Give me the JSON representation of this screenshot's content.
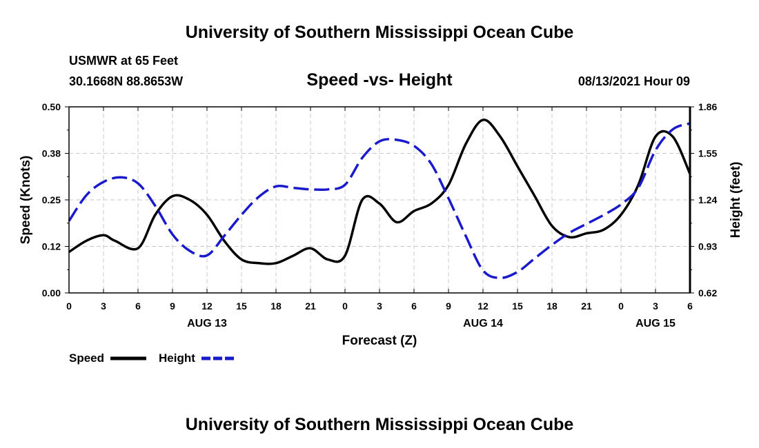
{
  "header": {
    "title": "University of Southern Mississippi Ocean Cube",
    "station": "USMWR at 65 Feet",
    "coords": "30.1668N  88.8653W",
    "chart_title": "Speed -vs- Height",
    "datetime": "08/13/2021 Hour 09"
  },
  "footer": {
    "title": "University of Southern Mississippi Ocean Cube"
  },
  "legend": {
    "speed_label": "Speed",
    "height_label": "Height"
  },
  "colors": {
    "speed": "#000000",
    "height": "#1a1acd",
    "grid": "#c8c8c8"
  },
  "chart_data": {
    "type": "line",
    "title": "Speed -vs- Height",
    "xlabel": "Forecast (Z)",
    "ylabel": "Speed (Knots)",
    "y2label": "Height (feet)",
    "x_hours_range": [
      0,
      54
    ],
    "x_tick_labels": [
      "0",
      "3",
      "6",
      "9",
      "12",
      "15",
      "18",
      "21",
      "0",
      "3",
      "6",
      "9",
      "12",
      "15",
      "18",
      "21",
      "0",
      "3",
      "6"
    ],
    "date_labels": [
      {
        "label": "AUG 13",
        "hour": 12
      },
      {
        "label": "AUG 14",
        "hour": 36
      },
      {
        "label": "AUG 15",
        "hour": 51
      }
    ],
    "y_left": {
      "min": 0.0,
      "max": 0.5,
      "ticks": [
        "0.00",
        "0.12",
        "0.25",
        "0.38",
        "0.50"
      ]
    },
    "y_right": {
      "min": 0.62,
      "max": 1.86,
      "ticks": [
        "0.62",
        "0.93",
        "1.24",
        "1.55",
        "1.86"
      ]
    },
    "grid": true,
    "series": [
      {
        "name": "Speed",
        "axis": "left",
        "style": "solid",
        "x": [
          0,
          1.5,
          3,
          4,
          6,
          7.5,
          9,
          10.5,
          12,
          13.5,
          15,
          16.5,
          18,
          19.5,
          21,
          22.5,
          24,
          25.5,
          27,
          28.5,
          30,
          31.5,
          33,
          34.5,
          36,
          37.5,
          39,
          40.5,
          42,
          43.5,
          45,
          46.5,
          48,
          49.5,
          51,
          52.5,
          54
        ],
        "values": [
          0.11,
          0.14,
          0.155,
          0.14,
          0.12,
          0.21,
          0.26,
          0.25,
          0.21,
          0.14,
          0.09,
          0.08,
          0.08,
          0.1,
          0.12,
          0.09,
          0.1,
          0.25,
          0.24,
          0.19,
          0.22,
          0.24,
          0.29,
          0.4,
          0.465,
          0.42,
          0.34,
          0.26,
          0.18,
          0.15,
          0.16,
          0.17,
          0.21,
          0.29,
          0.42,
          0.42,
          0.32
        ]
      },
      {
        "name": "Height",
        "axis": "right",
        "style": "dashed",
        "x": [
          0,
          1.5,
          3,
          4.5,
          6,
          7.5,
          9,
          10.5,
          12,
          13.5,
          15,
          16.5,
          18,
          19.5,
          21,
          22.5,
          24,
          25.5,
          27,
          28.5,
          30,
          31.5,
          33,
          34.5,
          36,
          37.5,
          39,
          40.5,
          42,
          43.5,
          45,
          46.5,
          48,
          49.5,
          51,
          52.5,
          54
        ],
        "values": [
          1.1,
          1.27,
          1.36,
          1.39,
          1.35,
          1.2,
          1.01,
          0.9,
          0.87,
          1.0,
          1.14,
          1.26,
          1.33,
          1.32,
          1.31,
          1.31,
          1.34,
          1.52,
          1.63,
          1.64,
          1.6,
          1.48,
          1.25,
          1.0,
          0.77,
          0.72,
          0.76,
          0.85,
          0.94,
          1.02,
          1.08,
          1.14,
          1.21,
          1.32,
          1.57,
          1.71,
          1.75
        ]
      }
    ]
  }
}
